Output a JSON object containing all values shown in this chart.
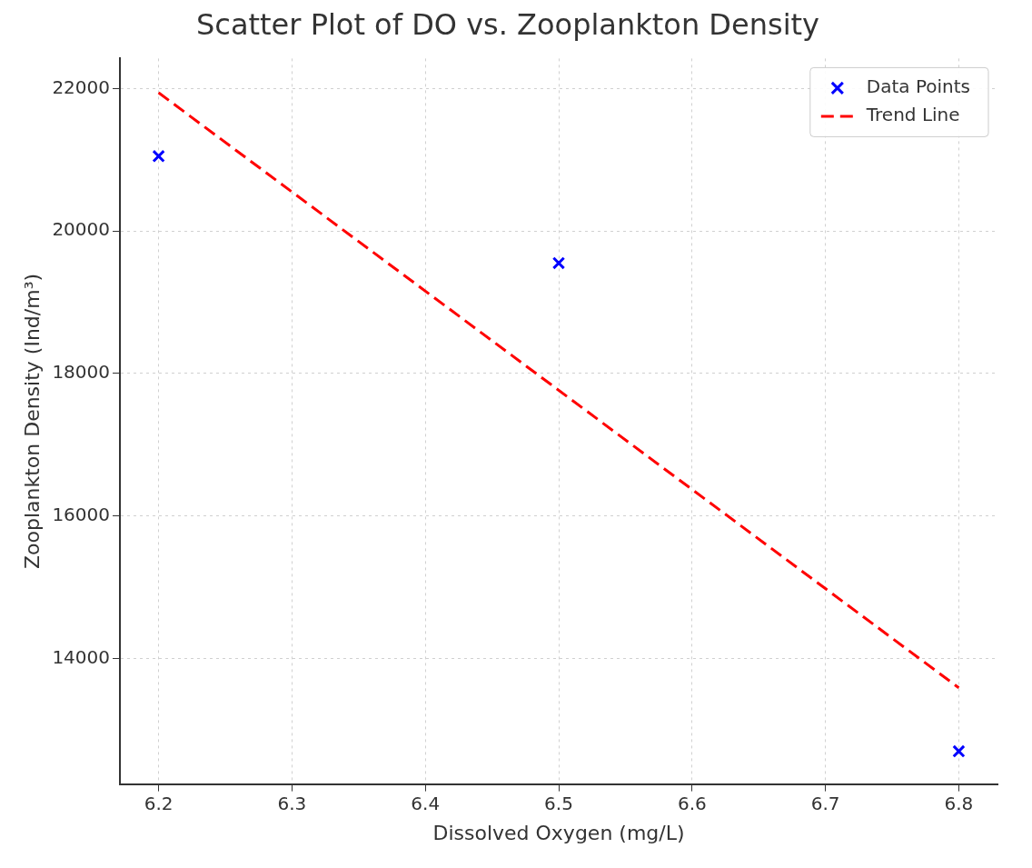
{
  "chart_data": {
    "type": "scatter",
    "title": "Scatter Plot of DO vs. Zooplankton Density",
    "xlabel": "Dissolved Oxygen (mg/L)",
    "ylabel": "Zooplankton Density (Ind/m³)",
    "series": [
      {
        "name": "Data Points",
        "color": "#0000ff",
        "marker": "cross",
        "x": [
          6.2,
          6.5,
          6.8
        ],
        "values": [
          21050,
          19550,
          12700
        ]
      },
      {
        "name": "Trend Line",
        "type": "line",
        "color": "#ff0000",
        "line_style": "dashed",
        "marker": "none",
        "x": [
          6.2,
          6.8
        ],
        "values": [
          21940,
          13590
        ]
      }
    ],
    "xlim": [
      6.171,
      6.829
    ],
    "xticks": [
      6.2,
      6.3,
      6.4,
      6.5,
      6.6,
      6.7,
      6.8
    ],
    "ylim": [
      12240,
      22420
    ],
    "yticks": [
      14000,
      16000,
      18000,
      20000,
      22000
    ],
    "grid": true,
    "legend": "top right"
  }
}
